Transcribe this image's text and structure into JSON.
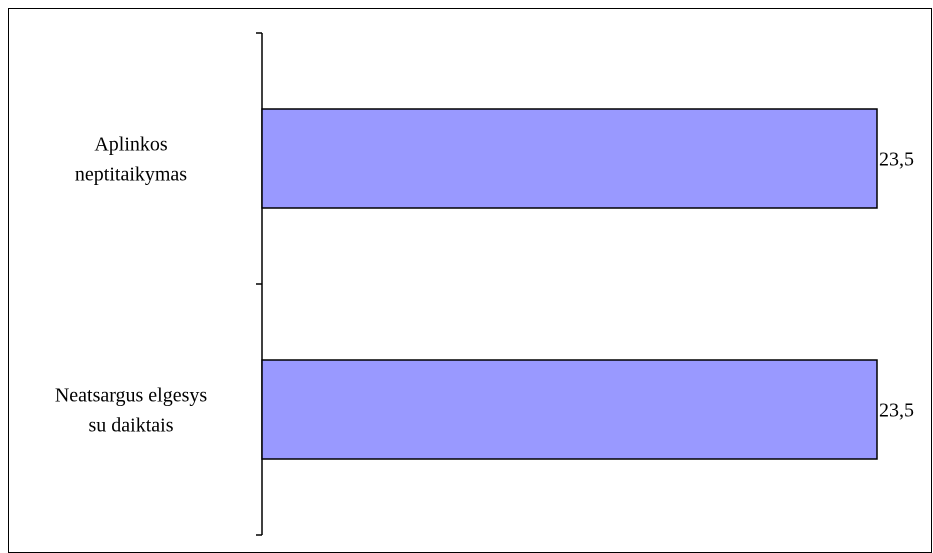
{
  "chart_data": {
    "type": "bar",
    "orientation": "horizontal",
    "categories": [
      [
        "Aplinkos",
        "neptitaikymas"
      ],
      [
        "Neatsargus elgesys",
        "su daiktais"
      ]
    ],
    "values": [
      23.5,
      23.5
    ],
    "data_labels": [
      "23,5",
      "23,5"
    ],
    "xlim": [
      0,
      23.5
    ],
    "title": "",
    "xlabel": "",
    "ylabel": "",
    "grid": false,
    "legend": "none",
    "bar_color": "#9999ff",
    "bar_edge_color": "#000000"
  }
}
